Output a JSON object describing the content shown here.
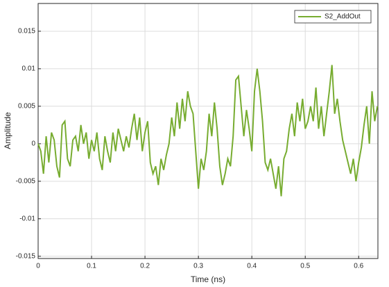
{
  "chart_data": {
    "type": "line",
    "xlabel": "Time (ns)",
    "ylabel": "Amplitude",
    "x": [
      0,
      0.005,
      0.01,
      0.015,
      0.02,
      0.025,
      0.03,
      0.035,
      0.04,
      0.045,
      0.05,
      0.055,
      0.06,
      0.065,
      0.07,
      0.075,
      0.08,
      0.085,
      0.09,
      0.095,
      0.1,
      0.105,
      0.11,
      0.115,
      0.12,
      0.125,
      0.13,
      0.135,
      0.14,
      0.145,
      0.15,
      0.155,
      0.16,
      0.165,
      0.17,
      0.175,
      0.18,
      0.185,
      0.19,
      0.195,
      0.2,
      0.205,
      0.21,
      0.215,
      0.22,
      0.225,
      0.23,
      0.235,
      0.24,
      0.245,
      0.25,
      0.255,
      0.26,
      0.265,
      0.27,
      0.275,
      0.28,
      0.285,
      0.29,
      0.295,
      0.3,
      0.305,
      0.31,
      0.315,
      0.32,
      0.325,
      0.33,
      0.335,
      0.34,
      0.345,
      0.35,
      0.355,
      0.36,
      0.365,
      0.37,
      0.375,
      0.38,
      0.385,
      0.39,
      0.395,
      0.4,
      0.405,
      0.41,
      0.415,
      0.42,
      0.425,
      0.43,
      0.435,
      0.44,
      0.445,
      0.45,
      0.455,
      0.46,
      0.465,
      0.47,
      0.475,
      0.48,
      0.485,
      0.49,
      0.495,
      0.5,
      0.505,
      0.51,
      0.515,
      0.52,
      0.525,
      0.53,
      0.535,
      0.54,
      0.545,
      0.55,
      0.555,
      0.56,
      0.565,
      0.57,
      0.575,
      0.58,
      0.585,
      0.59,
      0.595,
      0.6,
      0.605,
      0.61,
      0.615,
      0.62,
      0.625,
      0.63,
      0.635
    ],
    "series": [
      {
        "name": "S2_AddOut",
        "color": "#77ac30",
        "values": [
          0,
          -0.001,
          -0.004,
          0.001,
          -0.0025,
          0.0015,
          0.0005,
          -0.003,
          -0.0045,
          0.0025,
          0.003,
          -0.002,
          -0.003,
          0.0005,
          0.001,
          -0.001,
          0.0025,
          0,
          0.0015,
          -0.002,
          0.0005,
          -0.001,
          0.0015,
          -0.002,
          -0.0035,
          0.001,
          -0.001,
          -0.0025,
          0.0015,
          -0.001,
          0.002,
          0.0005,
          -0.001,
          0.001,
          -0.0005,
          0.002,
          0.004,
          0.0005,
          0.0035,
          -0.001,
          0.0015,
          0.003,
          -0.0025,
          -0.004,
          -0.003,
          -0.0055,
          -0.002,
          -0.0035,
          -0.0015,
          0,
          0.0035,
          0.001,
          0.0055,
          0.002,
          0.006,
          0.003,
          0.007,
          0.005,
          0.004,
          -0.001,
          -0.006,
          -0.002,
          -0.0035,
          -0.001,
          0.004,
          0.001,
          0.0055,
          0.002,
          -0.003,
          -0.0055,
          -0.004,
          -0.002,
          -0.003,
          0.001,
          0.0085,
          0.009,
          0.005,
          0.001,
          0.0045,
          0.002,
          -0.001,
          0.007,
          0.01,
          0.007,
          0.003,
          -0.0025,
          -0.0035,
          -0.002,
          -0.004,
          -0.006,
          -0.003,
          -0.007,
          -0.002,
          -0.001,
          0.002,
          0.004,
          0.001,
          0.0055,
          0.003,
          0.006,
          0.002,
          0.003,
          0.005,
          0.003,
          0.0075,
          0.002,
          0.005,
          0.001,
          0.004,
          0.007,
          0.0105,
          0.004,
          0.006,
          0.003,
          0.0005,
          -0.001,
          -0.0025,
          -0.004,
          -0.002,
          -0.005,
          -0.0025,
          -0.0005,
          0.0025,
          0.005,
          0,
          0.007,
          0.003,
          0.005
        ]
      }
    ],
    "xlim": [
      0,
      0.636
    ],
    "ylim": [
      -0.0153,
      0.0187
    ],
    "xticks": [
      0,
      0.1,
      0.2,
      0.3,
      0.4,
      0.5,
      0.6
    ],
    "yticks": [
      -0.015,
      -0.01,
      -0.005,
      0,
      0.005,
      0.01,
      0.015
    ],
    "grid": true,
    "legend": "upper right"
  }
}
